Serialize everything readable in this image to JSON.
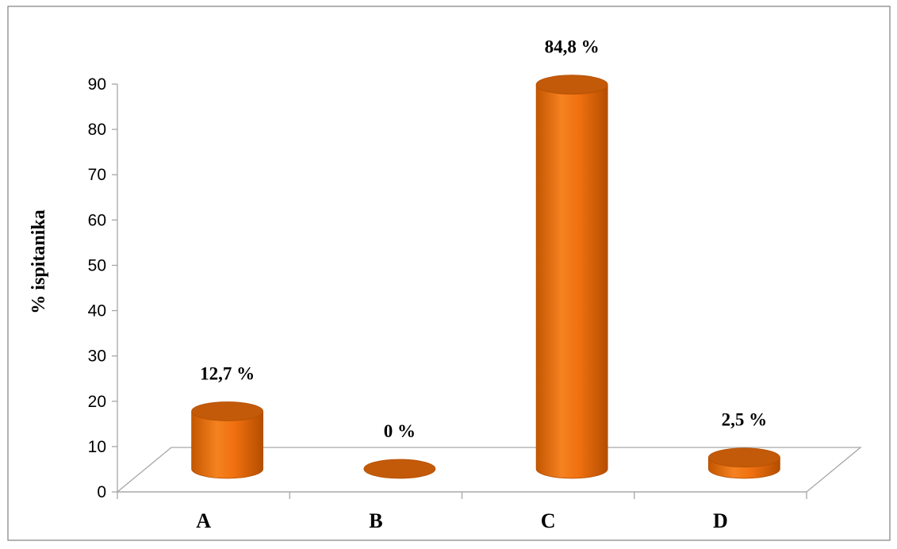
{
  "chart_data": {
    "type": "bar",
    "title": "",
    "xlabel": "",
    "ylabel": "% ispitanika",
    "categories": [
      "A",
      "B",
      "C",
      "D"
    ],
    "values": [
      12.7,
      0,
      84.8,
      2.5
    ],
    "data_labels": [
      "12,7 %",
      "0 %",
      "84,8 %",
      "2,5 %"
    ],
    "yticks": [
      0,
      10,
      20,
      30,
      40,
      50,
      60,
      70,
      80,
      90
    ],
    "ylim": [
      0,
      90
    ],
    "grid": false,
    "legend": "none",
    "bar_shape": "cylinder-3d",
    "colors": {
      "bar": "#f07010",
      "bar_dark": "#c45600",
      "bar_top": "#c35a0a",
      "axis": "#a6a6a6",
      "frame": "#7f7f7f"
    }
  }
}
